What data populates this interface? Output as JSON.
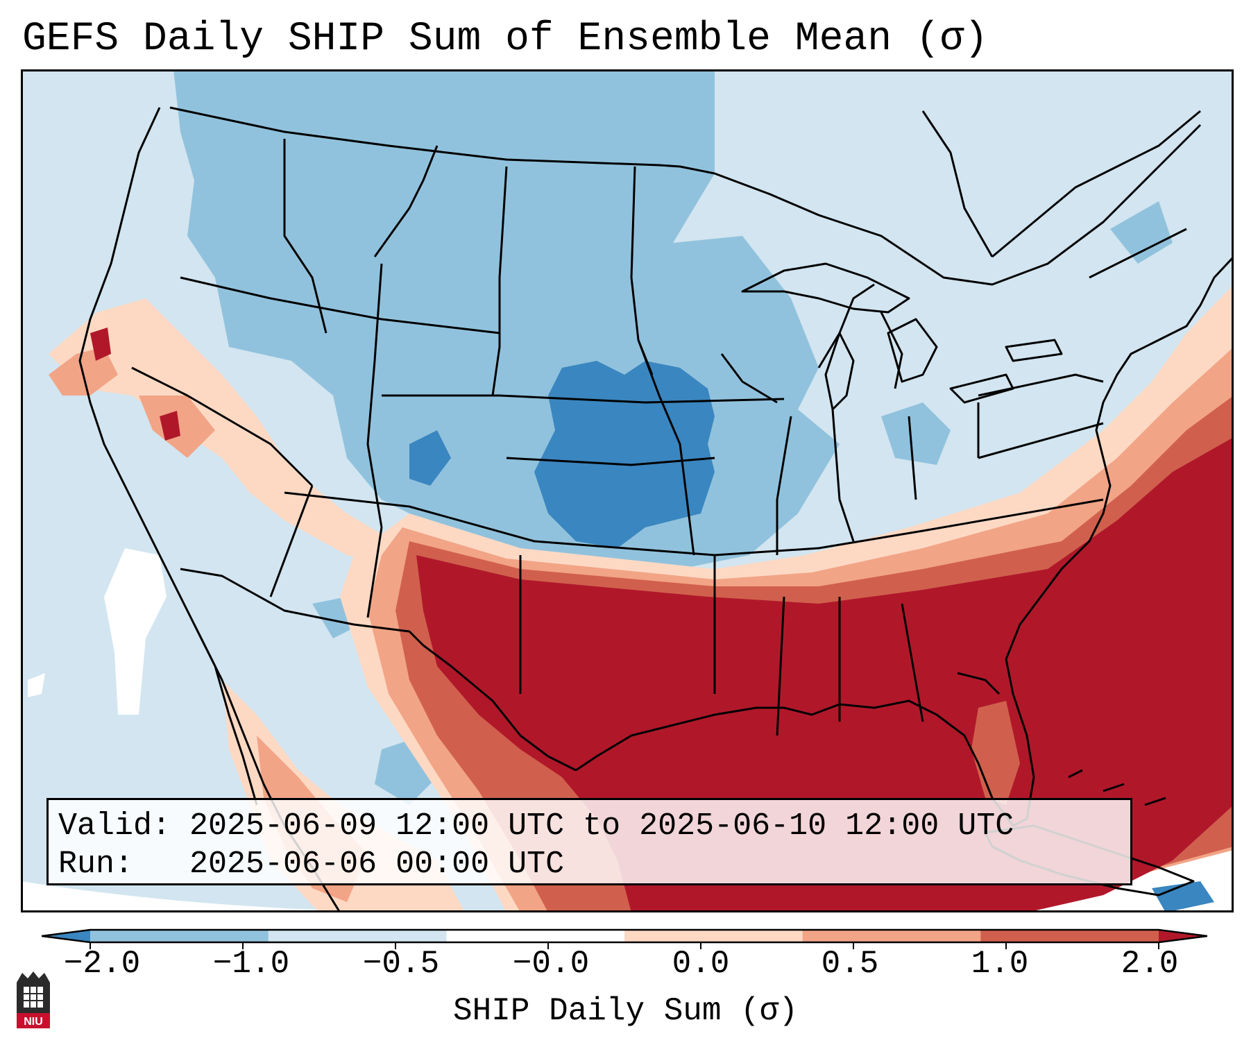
{
  "figure": {
    "title": "GEFS Daily SHIP Sum of Ensemble Mean (σ)",
    "valid_line": "Valid: 2025-06-09 12:00 UTC to 2025-06-10 12:00 UTC",
    "run_line": "Run:   2025-06-06 00:00 UTC"
  },
  "colorbar": {
    "label": "SHIP Daily Sum (σ)",
    "ticks": [
      "−2.0",
      "−1.0",
      "−0.5",
      "−0.0",
      "0.0",
      "0.5",
      "1.0",
      "2.0"
    ],
    "colors": [
      "#3a86c0",
      "#91c2dd",
      "#d2e5f0",
      "#ffffff",
      "#fdd9c4",
      "#f2a486",
      "#d0604d",
      "#b0182a"
    ]
  },
  "logo": {
    "text": "NIU"
  },
  "chart_data": {
    "type": "heatmap",
    "title": "GEFS Daily SHIP Sum of Ensemble Mean (σ)",
    "colorbar_label": "SHIP Daily Sum (σ)",
    "levels": [
      -2.0,
      -1.0,
      -0.5,
      -0.0,
      0.0,
      0.5,
      1.0,
      2.0
    ],
    "extend": "both",
    "region": "Contiguous United States",
    "valid": "2025-06-09 12:00 UTC to 2025-06-10 12:00 UTC",
    "run": "2025-06-06 00:00 UTC"
  }
}
